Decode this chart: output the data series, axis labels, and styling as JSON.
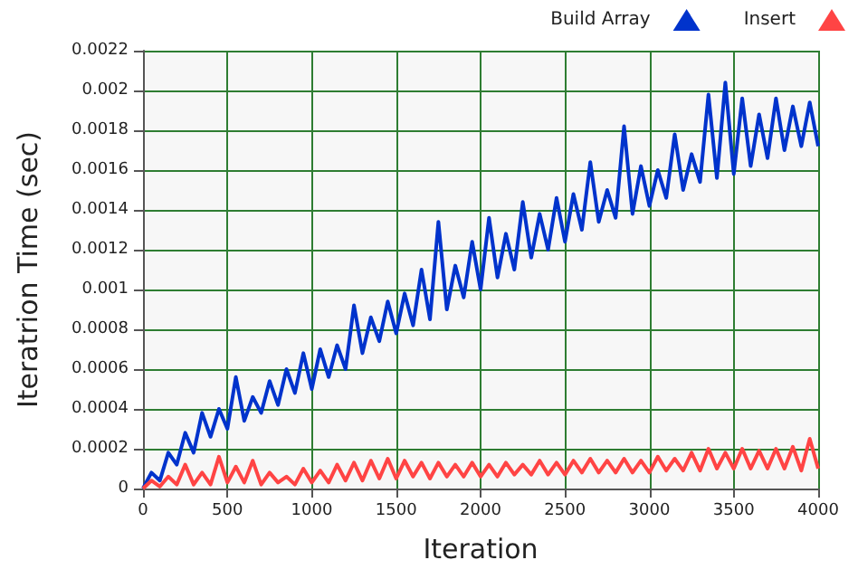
{
  "chart_data": {
    "type": "line",
    "xlabel": "Iteration",
    "ylabel": "Iteratrion Time (sec)",
    "x": [
      0,
      50,
      100,
      150,
      200,
      250,
      300,
      350,
      400,
      450,
      500,
      550,
      600,
      650,
      700,
      750,
      800,
      850,
      900,
      950,
      1000,
      1050,
      1100,
      1150,
      1200,
      1250,
      1300,
      1350,
      1400,
      1450,
      1500,
      1550,
      1600,
      1650,
      1700,
      1750,
      1800,
      1850,
      1900,
      1950,
      2000,
      2050,
      2100,
      2150,
      2200,
      2250,
      2300,
      2350,
      2400,
      2450,
      2500,
      2550,
      2600,
      2650,
      2700,
      2750,
      2800,
      2850,
      2900,
      2950,
      3000,
      3050,
      3100,
      3150,
      3200,
      3250,
      3300,
      3350,
      3400,
      3450,
      3500,
      3550,
      3600,
      3650,
      3700,
      3750,
      3800,
      3850,
      3900,
      3950,
      4000
    ],
    "series": [
      {
        "name": "Build Array",
        "color": "#0033cc",
        "values": [
          0,
          8e-05,
          4e-05,
          0.00018,
          0.00012,
          0.00028,
          0.00018,
          0.00038,
          0.00026,
          0.0004,
          0.0003,
          0.00056,
          0.00034,
          0.00046,
          0.00038,
          0.00054,
          0.00042,
          0.0006,
          0.00048,
          0.00068,
          0.0005,
          0.0007,
          0.00056,
          0.00072,
          0.0006,
          0.00092,
          0.00068,
          0.00086,
          0.00074,
          0.00094,
          0.00078,
          0.00098,
          0.00082,
          0.0011,
          0.00085,
          0.00134,
          0.0009,
          0.00112,
          0.00096,
          0.00124,
          0.001,
          0.00136,
          0.00106,
          0.00128,
          0.0011,
          0.00144,
          0.00116,
          0.00138,
          0.0012,
          0.00146,
          0.00124,
          0.00148,
          0.0013,
          0.00164,
          0.00134,
          0.0015,
          0.00136,
          0.00182,
          0.00138,
          0.00162,
          0.00142,
          0.0016,
          0.00146,
          0.00178,
          0.0015,
          0.00168,
          0.00154,
          0.00198,
          0.00156,
          0.00204,
          0.00158,
          0.00196,
          0.00162,
          0.00188,
          0.00166,
          0.00196,
          0.0017,
          0.00192,
          0.00172,
          0.00194,
          0.00172
        ]
      },
      {
        "name": "Insert",
        "color": "#ff4444",
        "values": [
          0,
          4e-05,
          1e-05,
          6e-05,
          2e-05,
          0.00012,
          2e-05,
          8e-05,
          2e-05,
          0.00016,
          3e-05,
          0.00011,
          3e-05,
          0.00014,
          2e-05,
          8e-05,
          3e-05,
          6e-05,
          2e-05,
          0.0001,
          3e-05,
          9e-05,
          3e-05,
          0.00012,
          4e-05,
          0.00013,
          4e-05,
          0.00014,
          5e-05,
          0.00015,
          5e-05,
          0.00014,
          6e-05,
          0.00013,
          5e-05,
          0.00013,
          6e-05,
          0.00012,
          6e-05,
          0.00013,
          6e-05,
          0.00012,
          6e-05,
          0.00013,
          7e-05,
          0.00012,
          7e-05,
          0.00014,
          7e-05,
          0.00013,
          7e-05,
          0.00014,
          8e-05,
          0.00015,
          8e-05,
          0.00014,
          8e-05,
          0.00015,
          8e-05,
          0.00014,
          8e-05,
          0.00016,
          9e-05,
          0.00015,
          9e-05,
          0.00018,
          9e-05,
          0.0002,
          0.0001,
          0.00018,
          0.0001,
          0.0002,
          0.0001,
          0.00019,
          0.0001,
          0.0002,
          0.0001,
          0.00021,
          9e-05,
          0.00025,
          0.0001
        ]
      }
    ],
    "xlim": [
      0,
      4000
    ],
    "xticks": [
      0,
      500,
      1000,
      1500,
      2000,
      2500,
      3000,
      3500,
      4000
    ],
    "ylim": [
      0,
      0.0022
    ],
    "yticks": [
      0,
      0.0002,
      0.0004,
      0.0006,
      0.0008,
      0.001,
      0.0012,
      0.0014,
      0.0016,
      0.0018,
      0.002,
      0.0022
    ],
    "grid": true,
    "legend": "top right",
    "marker": "none",
    "line_style": "solid"
  }
}
